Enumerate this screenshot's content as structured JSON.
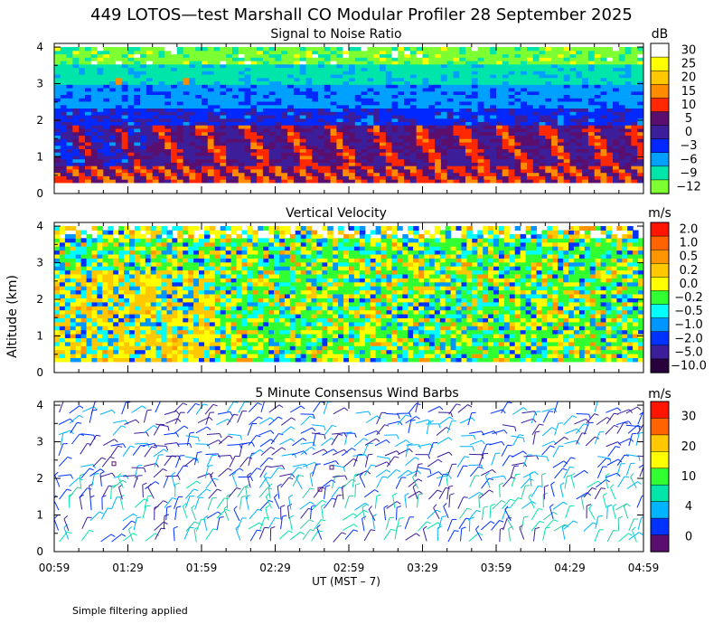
{
  "title": "449 LOTOS—test Marshall CO Modular Profiler 28 September 2025",
  "y_axis_label": "Altitude (km)",
  "x_axis_label": "UT  (MST – 7)",
  "footnote": "Simple filtering applied",
  "x_ticks": [
    "00:59",
    "01:29",
    "01:59",
    "02:29",
    "02:59",
    "03:29",
    "03:59",
    "04:29",
    "04:59"
  ],
  "y_ticks": [
    "0",
    "1",
    "2",
    "3",
    "4"
  ],
  "chart_data": [
    {
      "type": "heatmap",
      "title": "Signal to Noise Ratio",
      "units": "dB",
      "ylabel": "Altitude (km)",
      "ylim": [
        0,
        4.1
      ],
      "data_ylim": [
        0.3,
        4.0
      ],
      "x_range": [
        "00:59",
        "04:59"
      ],
      "colorbar": {
        "labels": [
          "30",
          "25",
          "20",
          "15",
          "10",
          "5",
          "0",
          "−3",
          "−6",
          "−9",
          "−12"
        ],
        "colors": [
          "#ffffff",
          "#ffff00",
          "#ffc800",
          "#ff8c00",
          "#ff2800",
          "#5a0f6e",
          "#3c1e9b",
          "#0028ff",
          "#00a0ff",
          "#00e6aa",
          "#7dff32"
        ]
      },
      "description_levels": [
        {
          "altitude_km": 3.5,
          "snr_db": -9
        },
        {
          "altitude_km": 2.8,
          "snr_db": -6
        },
        {
          "altitude_km": 2.2,
          "snr_db": -3
        },
        {
          "altitude_km": 1.8,
          "snr_db": 2
        },
        {
          "altitude_km": 1.0,
          "snr_db": 12
        },
        {
          "altitude_km": 0.5,
          "snr_db": 15
        }
      ]
    },
    {
      "type": "heatmap",
      "title": "Vertical Velocity",
      "units": "m/s",
      "ylabel": "Altitude (km)",
      "ylim": [
        0,
        4.1
      ],
      "data_ylim": [
        0.3,
        4.0
      ],
      "x_range": [
        "00:59",
        "04:59"
      ],
      "colorbar": {
        "labels": [
          "2.0",
          "1.0",
          "0.5",
          "0.2",
          "0.0",
          "−0.2",
          "−0.5",
          "−1.0",
          "−2.0",
          "−5.0",
          "−10.0"
        ],
        "colors": [
          "#ff1400",
          "#ff6400",
          "#ff9600",
          "#ffc800",
          "#ffff00",
          "#32ff32",
          "#00ffff",
          "#0096ff",
          "#0032ff",
          "#3c1e9b",
          "#28003c"
        ]
      },
      "typical_range_mps": [
        -0.5,
        0.3
      ]
    },
    {
      "type": "scatter",
      "title": "5 Minute Consensus Wind Barbs",
      "units": "m/s",
      "ylabel": "Altitude (km)",
      "ylim": [
        0,
        4.1
      ],
      "data_ylim": [
        0.3,
        4.0
      ],
      "x_range": [
        "00:59",
        "04:59"
      ],
      "colorbar": {
        "labels": [
          "30",
          "20",
          "10",
          "4",
          "0"
        ],
        "colors": [
          "#ff1400",
          "#ff6400",
          "#ffc800",
          "#ffff00",
          "#32ff32",
          "#00e6aa",
          "#00b4ff",
          "#0032ff",
          "#5a0f6e"
        ]
      },
      "typical_speed_mps": [
        2,
        12
      ]
    }
  ]
}
